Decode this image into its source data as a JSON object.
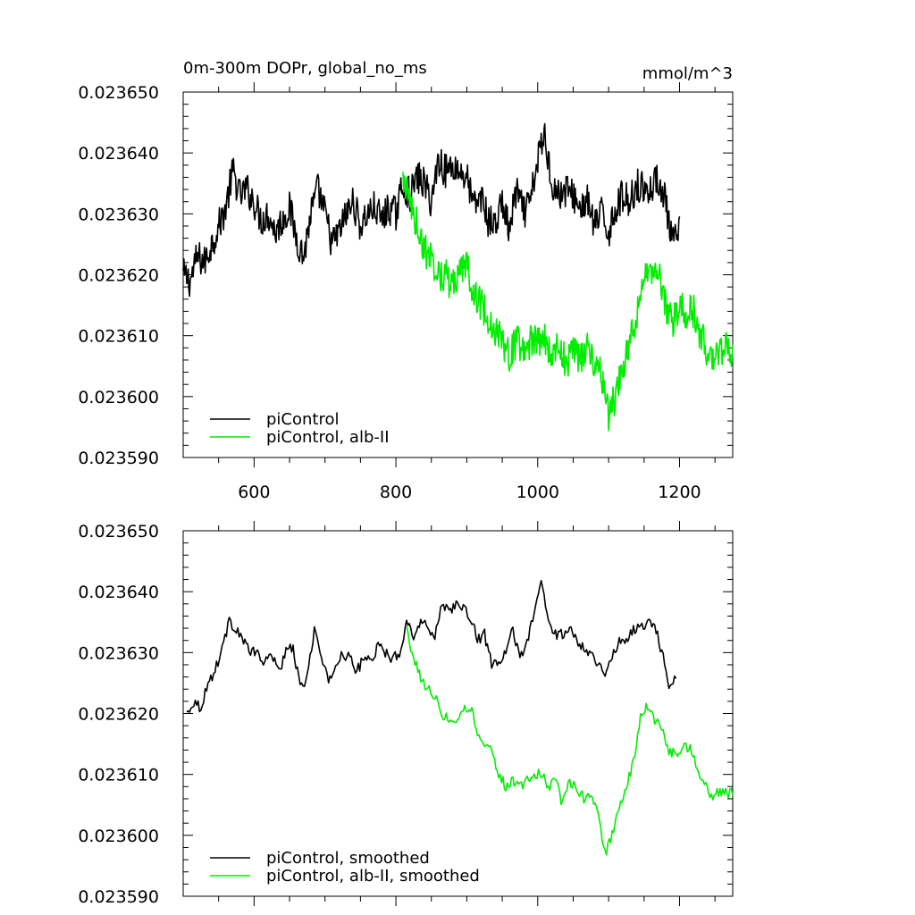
{
  "chart_data": [
    {
      "type": "line",
      "title": "0m-300m DOPr, global_no_ms",
      "units": "mmol/m^3",
      "xlim": [
        500,
        1275
      ],
      "ylim": [
        0.02359,
        0.02365
      ],
      "x_ticks": [
        600,
        800,
        1000,
        1200
      ],
      "x_tick_labels": [
        "600",
        "800",
        "1000",
        "1200"
      ],
      "y_ticks": [
        0.02359,
        0.0236,
        0.02361,
        0.02362,
        0.02363,
        0.02364,
        0.02365
      ],
      "y_tick_labels": [
        "0.023590",
        "0.023600",
        "0.023610",
        "0.023620",
        "0.023630",
        "0.023640",
        "0.023650"
      ],
      "legend_position": "bottom-left",
      "series": [
        {
          "name": "piControl",
          "color": "#000000",
          "x": [
            500,
            510,
            520,
            530,
            540,
            550,
            560,
            570,
            580,
            590,
            600,
            610,
            620,
            630,
            640,
            650,
            660,
            670,
            680,
            690,
            700,
            710,
            720,
            730,
            740,
            750,
            760,
            770,
            780,
            790,
            800,
            810,
            820,
            830,
            840,
            850,
            860,
            870,
            880,
            890,
            900,
            910,
            920,
            930,
            940,
            950,
            960,
            970,
            980,
            990,
            1000,
            1010,
            1020,
            1030,
            1040,
            1050,
            1060,
            1070,
            1080,
            1090,
            1100,
            1110,
            1120,
            1130,
            1140,
            1150,
            1160,
            1170,
            1180,
            1190,
            1200
          ],
          "values": [
            0.02362,
            0.023619,
            0.023623,
            0.023622,
            0.023625,
            0.023628,
            0.023631,
            0.023637,
            0.023633,
            0.023634,
            0.023632,
            0.023629,
            0.02363,
            0.023627,
            0.023629,
            0.023631,
            0.023626,
            0.023623,
            0.02363,
            0.023634,
            0.02363,
            0.023625,
            0.023627,
            0.02363,
            0.023632,
            0.023628,
            0.02363,
            0.023631,
            0.023629,
            0.023631,
            0.02363,
            0.023635,
            0.023633,
            0.023636,
            0.023635,
            0.023632,
            0.023639,
            0.023637,
            0.023638,
            0.023637,
            0.023636,
            0.023631,
            0.023633,
            0.023629,
            0.023628,
            0.023632,
            0.023627,
            0.023634,
            0.02363,
            0.023632,
            0.023639,
            0.023643,
            0.023635,
            0.023633,
            0.023634,
            0.023633,
            0.023631,
            0.023632,
            0.023628,
            0.02363,
            0.023627,
            0.023631,
            0.023633,
            0.023632,
            0.023635,
            0.023634,
            0.023634,
            0.023636,
            0.023632,
            0.023625,
            0.023627
          ]
        },
        {
          "name": "piControl, alb-II",
          "color": "#00ee00",
          "x": [
            810,
            820,
            830,
            840,
            850,
            860,
            870,
            880,
            890,
            900,
            910,
            920,
            930,
            940,
            950,
            960,
            970,
            980,
            990,
            1000,
            1010,
            1020,
            1030,
            1040,
            1050,
            1060,
            1070,
            1080,
            1090,
            1100,
            1110,
            1120,
            1130,
            1140,
            1150,
            1160,
            1170,
            1180,
            1190,
            1200,
            1210,
            1220,
            1230,
            1240,
            1250,
            1260,
            1270,
            1275
          ],
          "values": [
            0.023636,
            0.023632,
            0.023628,
            0.023624,
            0.023623,
            0.02362,
            0.02362,
            0.023618,
            0.02362,
            0.023622,
            0.023617,
            0.023615,
            0.023613,
            0.023611,
            0.023609,
            0.023607,
            0.023609,
            0.023608,
            0.023609,
            0.023609,
            0.02361,
            0.023606,
            0.023609,
            0.023605,
            0.023608,
            0.023606,
            0.023608,
            0.023606,
            0.023604,
            0.023597,
            0.0236,
            0.023605,
            0.023609,
            0.023613,
            0.023621,
            0.023619,
            0.02362,
            0.023615,
            0.023612,
            0.023615,
            0.023614,
            0.023614,
            0.02361,
            0.023607,
            0.023607,
            0.023608,
            0.023608,
            0.023607
          ]
        }
      ]
    },
    {
      "type": "line",
      "xlim": [
        500,
        1275
      ],
      "ylim": [
        0.02359,
        0.02365
      ],
      "x_ticks": [
        600,
        800,
        1000,
        1200
      ],
      "y_ticks": [
        0.02359,
        0.0236,
        0.02361,
        0.02362,
        0.02363,
        0.02364,
        0.02365
      ],
      "y_tick_labels": [
        "0.023590",
        "0.023600",
        "0.023610",
        "0.023620",
        "0.023630",
        "0.023640",
        "0.023650"
      ],
      "legend_position": "bottom-left",
      "series": [
        {
          "name": "piControl, smoothed",
          "color": "#000000",
          "x": [
            505,
            515,
            525,
            535,
            545,
            555,
            565,
            575,
            585,
            595,
            605,
            615,
            625,
            635,
            645,
            655,
            665,
            675,
            685,
            695,
            705,
            715,
            725,
            735,
            745,
            755,
            765,
            775,
            785,
            795,
            805,
            815,
            825,
            835,
            845,
            855,
            865,
            875,
            885,
            895,
            905,
            915,
            925,
            935,
            945,
            955,
            965,
            975,
            985,
            995,
            1005,
            1015,
            1025,
            1035,
            1045,
            1055,
            1065,
            1075,
            1085,
            1095,
            1105,
            1115,
            1125,
            1135,
            1145,
            1155,
            1165,
            1175,
            1185,
            1195
          ],
          "values": [
            0.02362,
            0.023622,
            0.023621,
            0.023625,
            0.023627,
            0.023631,
            0.023635,
            0.023634,
            0.023632,
            0.02363,
            0.02363,
            0.023628,
            0.02363,
            0.023627,
            0.02363,
            0.023631,
            0.023624,
            0.023626,
            0.023634,
            0.023629,
            0.023625,
            0.023628,
            0.02363,
            0.023629,
            0.023627,
            0.023629,
            0.023629,
            0.023631,
            0.02363,
            0.023629,
            0.02363,
            0.023635,
            0.023633,
            0.023635,
            0.023634,
            0.023633,
            0.023638,
            0.023637,
            0.023638,
            0.023637,
            0.023636,
            0.023632,
            0.023633,
            0.023628,
            0.023628,
            0.02363,
            0.023634,
            0.023629,
            0.023632,
            0.023636,
            0.023642,
            0.023635,
            0.023633,
            0.023633,
            0.023634,
            0.023632,
            0.023631,
            0.02363,
            0.023628,
            0.023627,
            0.023629,
            0.023632,
            0.023632,
            0.023634,
            0.023634,
            0.023635,
            0.023635,
            0.02363,
            0.023625,
            0.023626
          ]
        },
        {
          "name": "piControl, alb-II, smoothed",
          "color": "#00ee00",
          "x": [
            815,
            825,
            835,
            845,
            855,
            865,
            875,
            885,
            895,
            905,
            915,
            925,
            935,
            945,
            955,
            965,
            975,
            985,
            995,
            1005,
            1015,
            1025,
            1035,
            1045,
            1055,
            1065,
            1075,
            1085,
            1095,
            1105,
            1115,
            1125,
            1135,
            1145,
            1155,
            1165,
            1175,
            1185,
            1195,
            1205,
            1215,
            1225,
            1235,
            1245,
            1255,
            1265,
            1270,
            1275
          ],
          "values": [
            0.023634,
            0.023629,
            0.023626,
            0.023624,
            0.023623,
            0.02362,
            0.023619,
            0.023619,
            0.023621,
            0.023621,
            0.023617,
            0.023615,
            0.023614,
            0.02361,
            0.023608,
            0.023609,
            0.023608,
            0.023609,
            0.02361,
            0.02361,
            0.023608,
            0.023609,
            0.023605,
            0.023609,
            0.023608,
            0.023606,
            0.023607,
            0.023603,
            0.023597,
            0.0236,
            0.023605,
            0.023608,
            0.023612,
            0.02362,
            0.023621,
            0.023619,
            0.023618,
            0.023614,
            0.023613,
            0.023615,
            0.023614,
            0.023611,
            0.023609,
            0.023606,
            0.023607,
            0.023607,
            0.023607,
            0.023607
          ]
        }
      ]
    }
  ]
}
